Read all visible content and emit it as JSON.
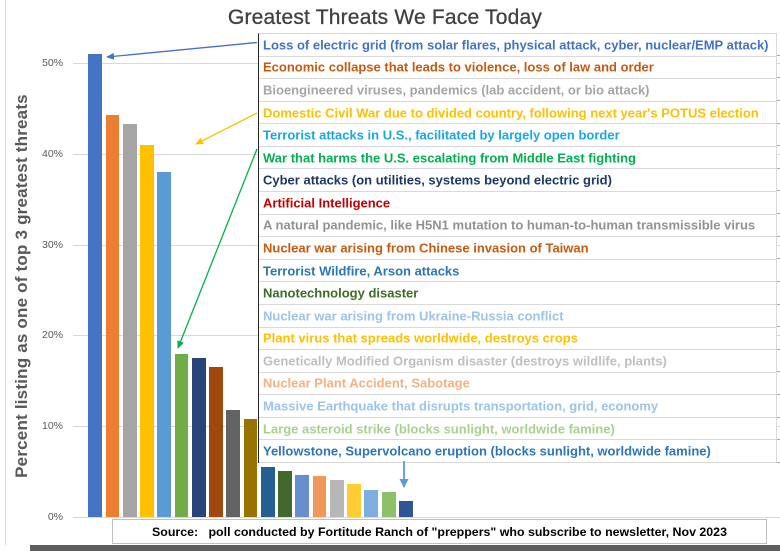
{
  "title": "Greatest Threats We Face Today",
  "y_axis_title": "Percent listing as one of top 3 greatest threats",
  "source_text": "Source:   poll conducted by Fortitude Ranch of \"preppers\" who subscribe to newsletter, Nov 2023",
  "chart_data": {
    "type": "bar",
    "title": "Greatest Threats We Face Today",
    "ylabel": "Percent listing as one of top 3 greatest threats",
    "ylim": [
      0,
      55
    ],
    "yticks": [
      "0%",
      "10%",
      "20%",
      "30%",
      "40%",
      "50%"
    ],
    "ytick_values": [
      0,
      10,
      20,
      30,
      40,
      50
    ],
    "grid": true,
    "legend_position": "right-overlay-list",
    "series": [
      {
        "label": "Loss of electric grid (from solar flares, physical attack, cyber, nuclear/EMP attack)",
        "value": 51.0,
        "bar_color": "#4472C4",
        "label_color": "#4472C4"
      },
      {
        "label": "Economic collapse that leads to violence, loss of law and order",
        "value": 44.3,
        "bar_color": "#ED7D31",
        "label_color": "#C55A11"
      },
      {
        "label": "Bioengineered viruses, pandemics (lab accident, or bio attack)",
        "value": 43.3,
        "bar_color": "#A5A5A5",
        "label_color": "#A5A5A5"
      },
      {
        "label": "Domestic Civil War due to divided country, following next year's POTUS election",
        "value": 41.0,
        "bar_color": "#FFC000",
        "label_color": "#FFC000"
      },
      {
        "label": "Terrorist attacks in U.S., facilitated by largely open border",
        "value": 38.0,
        "bar_color": "#5B9BD5",
        "label_color": "#1BA7E2"
      },
      {
        "label": "War that harms the U.S. escalating from Middle East fighting",
        "value": 18.0,
        "bar_color": "#70AD47",
        "label_color": "#00B050"
      },
      {
        "label": "Cyber attacks (on utilities, systems beyond electric grid)",
        "value": 17.5,
        "bar_color": "#264478",
        "label_color": "#1F3864"
      },
      {
        "label": "Artificial Intelligence",
        "value": 16.5,
        "bar_color": "#9E480E",
        "label_color": "#C00000"
      },
      {
        "label": "A natural pandemic, like H5N1 mutation to human-to-human transmissible virus",
        "value": 11.8,
        "bar_color": "#636363",
        "label_color": "#929292"
      },
      {
        "label": "Nuclear war arising from Chinese invasion of Taiwan",
        "value": 10.8,
        "bar_color": "#997300",
        "label_color": "#C55A11"
      },
      {
        "label": "Terrorist Wildfire, Arson attacks",
        "value": 5.5,
        "bar_color": "#255E91",
        "label_color": "#2E75B6"
      },
      {
        "label": "Nanotechnology disaster",
        "value": 5.1,
        "bar_color": "#43682B",
        "label_color": "#3F6B2A"
      },
      {
        "label": "Nuclear war arising from Ukraine-Russia conflict",
        "value": 4.6,
        "bar_color": "#698ED0",
        "label_color": "#9DC3E6"
      },
      {
        "label": "Plant virus that spreads worldwide, destroys crops",
        "value": 4.5,
        "bar_color": "#F1975A",
        "label_color": "#FFC000"
      },
      {
        "label": "Genetically Modified Organism disaster (destroys wildlife, plants)",
        "value": 4.1,
        "bar_color": "#B7B7B7",
        "label_color": "#BFBFBF"
      },
      {
        "label": "Nuclear Plant Accident, Sabotage",
        "value": 3.6,
        "bar_color": "#FFCD33",
        "label_color": "#F4B183"
      },
      {
        "label": "Massive Earthquake that disrupts transportation, grid, economy",
        "value": 3.0,
        "bar_color": "#7CAFDD",
        "label_color": "#9DC3E6"
      },
      {
        "label": "Large asteroid strike (blocks sunlight, worldwide famine)",
        "value": 2.7,
        "bar_color": "#8CC168",
        "label_color": "#A9D18E"
      },
      {
        "label": "Yellowstone, Supervolcano eruption (blocks sunlight, worldwide famine)",
        "value": 1.8,
        "bar_color": "#2F5597",
        "label_color": "#2E75B6"
      }
    ]
  },
  "annotations": {
    "arrows": [
      {
        "points_to_series": 0,
        "color": "#4472C4",
        "from": [
          257,
          42.5
        ],
        "to": [
          107,
          57
        ],
        "width": 1.3,
        "head": [
          8,
          7
        ]
      },
      {
        "points_to_series": 3,
        "color": "#FFC000",
        "from": [
          257,
          113
        ],
        "to": [
          196,
          144
        ],
        "width": 1.3,
        "head": [
          8,
          7
        ]
      },
      {
        "points_to_series": 5,
        "color": "#00B050",
        "from": [
          257,
          149
        ],
        "to": [
          178,
          348
        ],
        "width": 1.3,
        "head": [
          8,
          7
        ]
      },
      {
        "points_to_series": 18,
        "color": "#5B9BD5",
        "from": [
          404,
          461
        ],
        "to": [
          404,
          487
        ],
        "width": 1.8,
        "head": [
          9,
          9
        ]
      }
    ]
  }
}
